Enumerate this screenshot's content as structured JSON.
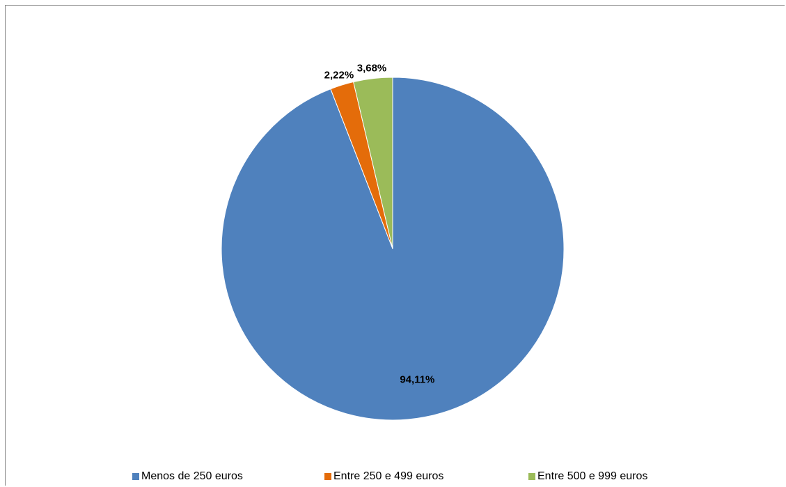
{
  "chart_data": {
    "type": "pie",
    "categories": [
      "Menos de 250 euros",
      "Entre 250 e 499 euros",
      "Entre 500 e 999 euros"
    ],
    "values": [
      94.11,
      2.22,
      3.68
    ],
    "data_labels": [
      "94,11%",
      "2,22%",
      "3,68%"
    ],
    "colors": [
      "#4f81bd",
      "#e46c0a",
      "#9bbb59"
    ],
    "title": "",
    "legend_position": "bottom",
    "start_angle": "12 o'clock",
    "direction": "clockwise"
  },
  "legend": {
    "items": [
      {
        "label": "Menos de 250 euros",
        "color": "#4f81bd"
      },
      {
        "label": "Entre 250 e 499 euros",
        "color": "#e46c0a"
      },
      {
        "label": "Entre 500 e 999 euros",
        "color": "#9bbb59"
      }
    ]
  }
}
